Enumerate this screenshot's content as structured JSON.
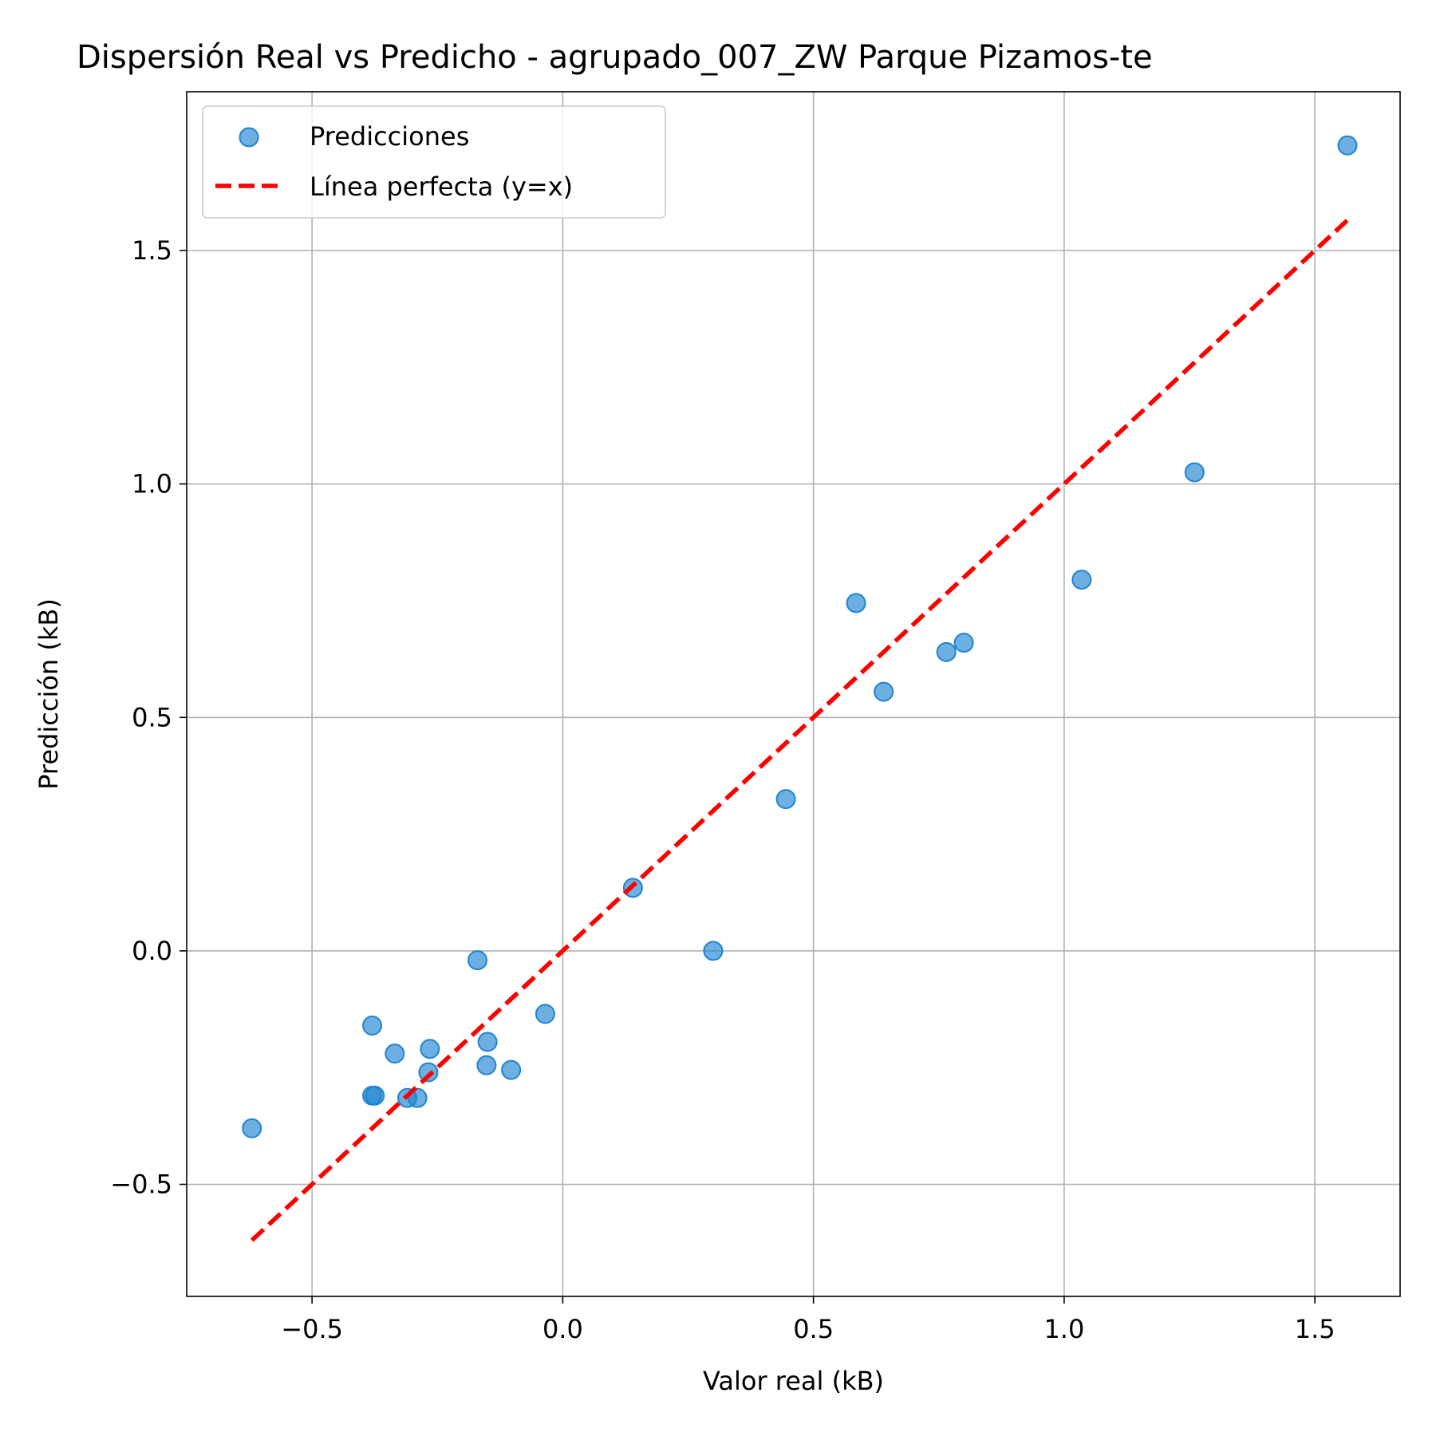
{
  "chart_data": {
    "type": "scatter",
    "title": "Dispersión Real vs Predicho - agrupado_007_ZW Parque Pizamos-te",
    "xlabel": "Valor real (kB)",
    "ylabel": "Predicción (kB)",
    "xlim": [
      -0.75,
      1.67
    ],
    "ylim": [
      -0.74,
      1.84
    ],
    "xticks": [
      -0.5,
      0.0,
      0.5,
      1.0,
      1.5
    ],
    "xtick_labels": [
      "−0.5",
      "0.0",
      "0.5",
      "1.0",
      "1.5"
    ],
    "yticks": [
      -0.5,
      0.0,
      0.5,
      1.0,
      1.5
    ],
    "ytick_labels": [
      "−0.5",
      "0.0",
      "0.5",
      "1.0",
      "1.5"
    ],
    "grid": true,
    "legend_position": "top-left",
    "series": [
      {
        "name": "Predicciones",
        "kind": "scatter",
        "color": "#1f84d1",
        "points": [
          {
            "x": -0.62,
            "y": -0.38
          },
          {
            "x": -0.38,
            "y": -0.16
          },
          {
            "x": -0.375,
            "y": -0.31
          },
          {
            "x": -0.38,
            "y": -0.31
          },
          {
            "x": -0.335,
            "y": -0.22
          },
          {
            "x": -0.31,
            "y": -0.315
          },
          {
            "x": -0.29,
            "y": -0.315
          },
          {
            "x": -0.265,
            "y": -0.21
          },
          {
            "x": -0.268,
            "y": -0.26
          },
          {
            "x": -0.17,
            "y": -0.02
          },
          {
            "x": -0.15,
            "y": -0.195
          },
          {
            "x": -0.152,
            "y": -0.245
          },
          {
            "x": -0.103,
            "y": -0.255
          },
          {
            "x": -0.035,
            "y": -0.135
          },
          {
            "x": 0.14,
            "y": 0.135
          },
          {
            "x": 0.3,
            "y": 0.0
          },
          {
            "x": 0.445,
            "y": 0.325
          },
          {
            "x": 0.585,
            "y": 0.745
          },
          {
            "x": 0.64,
            "y": 0.555
          },
          {
            "x": 0.765,
            "y": 0.64
          },
          {
            "x": 0.8,
            "y": 0.66
          },
          {
            "x": 1.035,
            "y": 0.795
          },
          {
            "x": 1.26,
            "y": 1.025
          },
          {
            "x": 1.565,
            "y": 1.725
          }
        ]
      },
      {
        "name": "Línea perfecta (y=x)",
        "kind": "line",
        "color": "#ff0000",
        "dashed": true,
        "points": [
          {
            "x": -0.62,
            "y": -0.62
          },
          {
            "x": 1.565,
            "y": 1.565
          }
        ]
      }
    ]
  }
}
